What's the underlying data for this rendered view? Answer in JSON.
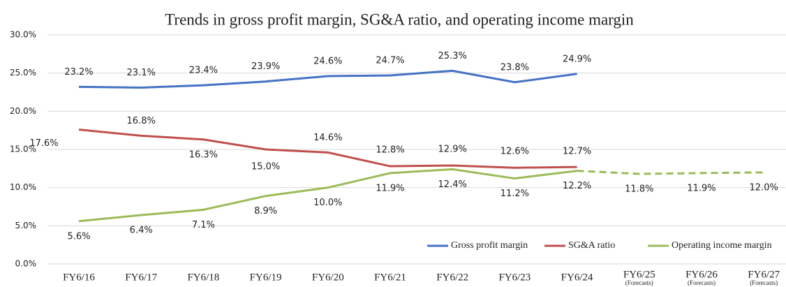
{
  "chart_data": {
    "type": "line",
    "title": "Trends in gross profit margin, SG&A ratio, and operating income margin",
    "categories": [
      "FY6/16",
      "FY6/17",
      "FY6/18",
      "FY6/19",
      "FY6/20",
      "FY6/21",
      "FY6/22",
      "FY6/23",
      "FY6/24",
      "FY6/25",
      "FY6/26",
      "FY6/27"
    ],
    "category_notes": [
      null,
      null,
      null,
      null,
      null,
      null,
      null,
      null,
      null,
      "(Forecasts)",
      "(Forecasts)",
      "(Forecasts)"
    ],
    "series": [
      {
        "name": "Gross profit margin",
        "color": "#4472c4",
        "values": [
          23.2,
          23.1,
          23.4,
          23.9,
          24.6,
          24.7,
          25.3,
          23.8,
          24.9,
          null,
          null,
          null
        ],
        "value_labels": [
          "23.2%",
          "23.1%",
          "23.4%",
          "23.9%",
          "24.6%",
          "24.7%",
          "25.3%",
          "23.8%",
          "24.9%",
          null,
          null,
          null
        ]
      },
      {
        "name": "SG&A ratio",
        "color": "#c0504d",
        "values": [
          17.6,
          16.8,
          16.3,
          15.0,
          14.6,
          12.8,
          12.9,
          12.6,
          12.7,
          null,
          null,
          null
        ],
        "value_labels": [
          "17.6%",
          "16.8%",
          "16.3%",
          "15.0%",
          "14.6%",
          "12.8%",
          "12.9%",
          "12.6%",
          "12.7%",
          null,
          null,
          null
        ]
      },
      {
        "name": "Operating income margin",
        "color": "#9bbb59",
        "values": [
          5.6,
          6.4,
          7.1,
          8.9,
          10.0,
          11.9,
          12.4,
          11.2,
          12.2,
          11.8,
          11.9,
          12.0
        ],
        "value_labels": [
          "5.6%",
          "6.4%",
          "7.1%",
          "8.9%",
          "10.0%",
          "11.9%",
          "12.4%",
          "11.2%",
          "12.2%",
          "11.8%",
          "11.9%",
          "12.0%"
        ],
        "dashed_from": 8
      }
    ],
    "ylim": [
      0,
      30
    ],
    "yticks": [
      {
        "value": 0,
        "label": "0.0%"
      },
      {
        "value": 5,
        "label": "5.0%"
      },
      {
        "value": 10,
        "label": "10.0%"
      },
      {
        "value": 15,
        "label": "15.0%"
      },
      {
        "value": 20,
        "label": "20.0%"
      },
      {
        "value": 25,
        "label": "25.0%"
      },
      {
        "value": 30,
        "label": "30.0%"
      }
    ],
    "grid": true,
    "legend": "lower right"
  }
}
